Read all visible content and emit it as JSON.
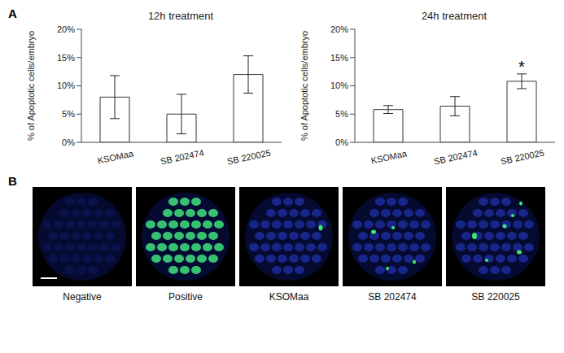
{
  "panel_labels": [
    "A",
    "B"
  ],
  "chart_data": [
    {
      "type": "bar",
      "title": "12h treatment",
      "y_label": "% of Apoptotic cells/embryo",
      "categories": [
        "KSOMaa",
        "SB 202474",
        "SB 220025"
      ],
      "values": [
        8,
        5,
        12
      ],
      "errors": [
        3.8,
        3.5,
        3.3
      ],
      "color": "#ffffff",
      "ylim": [
        0,
        20
      ],
      "yticks": [
        {
          "value": 0,
          "label": "0%"
        },
        {
          "value": 5,
          "label": "5%"
        },
        {
          "value": 10,
          "label": "10%"
        },
        {
          "value": 15,
          "label": "15%"
        },
        {
          "value": 20,
          "label": "20%"
        }
      ],
      "grid": false
    },
    {
      "type": "bar",
      "title": "24h treatment",
      "y_label": "% of Apoptotic cells/embryo",
      "categories": [
        "KSOMaa",
        "SB 202474",
        "SB 220025"
      ],
      "values": [
        5.8,
        6.4,
        10.8
      ],
      "errors": [
        0.7,
        1.7,
        1.3
      ],
      "color": "#ffffff",
      "ylim": [
        0,
        20
      ],
      "yticks": [
        {
          "value": 0,
          "label": "0%"
        },
        {
          "value": 5,
          "label": "5%"
        },
        {
          "value": 10,
          "label": "10%"
        },
        {
          "value": 15,
          "label": "15%"
        },
        {
          "value": 20,
          "label": "20%"
        }
      ],
      "grid": false,
      "annotations": [
        {
          "text": "*",
          "category": "SB 220025"
        }
      ]
    }
  ],
  "images": {
    "labels": [
      "Negative",
      "Positive",
      "KSOMaa",
      "SB 202474",
      "SB 220025"
    ]
  }
}
